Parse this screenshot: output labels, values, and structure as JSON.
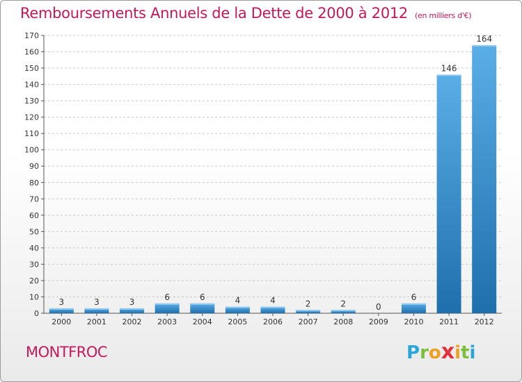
{
  "title": "Remboursements Annuels de la Dette de 2000 à 2012",
  "title_unit": "(en milliers d'€)",
  "commune": "MONTFROC",
  "logo": {
    "letters": [
      "P",
      "r",
      "o",
      "x",
      "i",
      "t",
      "i"
    ],
    "colors": [
      "#2aa7d8",
      "#7cbf3a",
      "#f0a020",
      "#e0303a",
      "#f0a020",
      "#7cbf3a",
      "#2aa7d8"
    ]
  },
  "colors": {
    "bar_light": "#5aaee6",
    "bar_dark": "#1f6fad",
    "title": "#c2185b",
    "grid": "#c8c8c8"
  },
  "chart_data": {
    "type": "bar",
    "title": "Remboursements Annuels de la Dette de 2000 à 2012",
    "ylabel": "",
    "xlabel": "",
    "categories": [
      "2000",
      "2001",
      "2002",
      "2003",
      "2004",
      "2005",
      "2006",
      "2007",
      "2008",
      "2009",
      "2010",
      "2011",
      "2012"
    ],
    "values": [
      3,
      3,
      3,
      6,
      6,
      4,
      4,
      2,
      2,
      0,
      6,
      146,
      164
    ],
    "ylim": [
      0,
      170
    ],
    "yticks": [
      0,
      10,
      20,
      30,
      40,
      50,
      60,
      70,
      80,
      90,
      100,
      110,
      120,
      130,
      140,
      150,
      160,
      170
    ],
    "grid": "horizontal-dashed",
    "legend": "none"
  }
}
